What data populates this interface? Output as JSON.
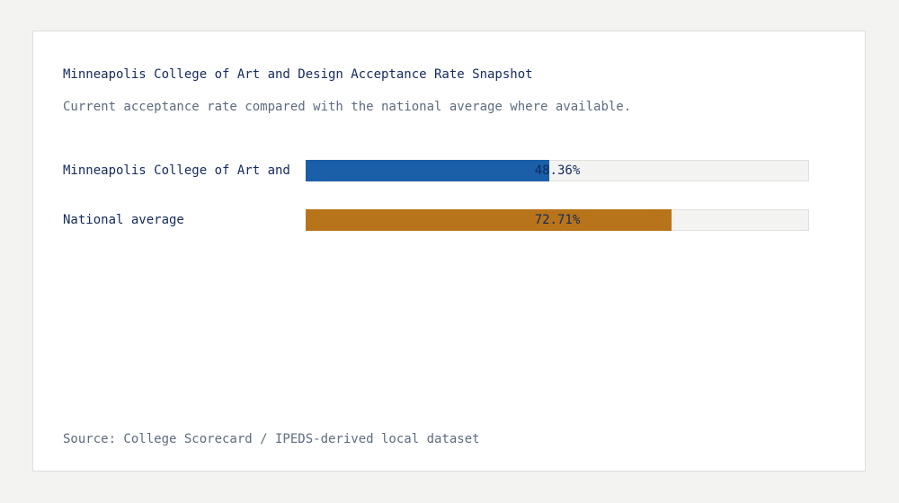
{
  "chart_data": {
    "type": "bar",
    "orientation": "horizontal",
    "title": "Minneapolis College of Art and Design Acceptance Rate Snapshot",
    "subtitle": "Current acceptance rate compared with the national average where available.",
    "categories": [
      "Minneapolis College of Art and",
      "National average"
    ],
    "values": [
      48.36,
      72.71
    ],
    "value_labels": [
      "48.36%",
      "72.71%"
    ],
    "colors": [
      "#1a5fa8",
      "#b8741a"
    ],
    "xlim": [
      0,
      100
    ],
    "unit": "%",
    "grid": false,
    "legend": "none"
  },
  "footer": {
    "source": "Source: College Scorecard / IPEDS-derived local dataset"
  }
}
